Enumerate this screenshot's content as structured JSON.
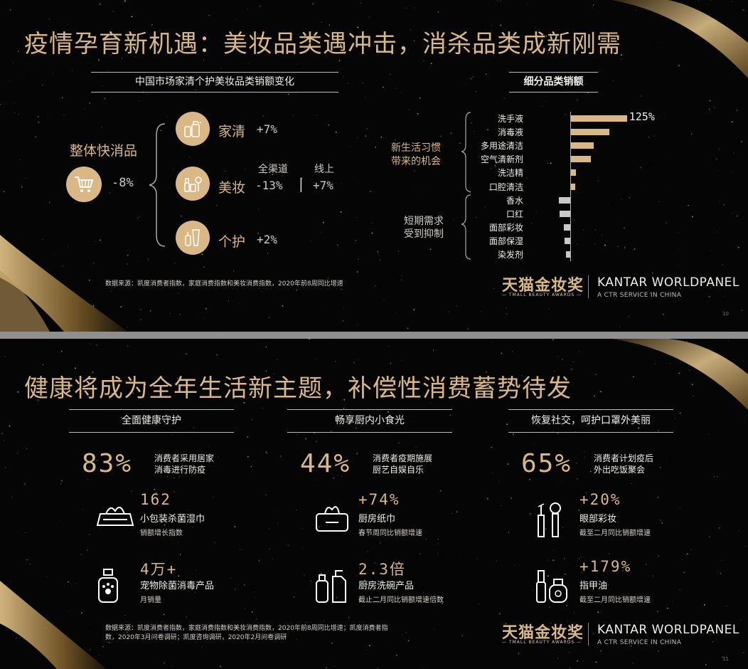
{
  "slide1": {
    "title": "疫情孕育新机遇：美妆品类遇冲击，消杀品类成新刚需",
    "left_header": "中国市场家清个护美妆品类销额变化",
    "overall": {
      "label": "整体快消品",
      "value": "-8%"
    },
    "categories": [
      {
        "label": "家清",
        "value": "+7%",
        "icon": "cleaning-bottles-icon"
      },
      {
        "label": "美妆",
        "value": "-13%",
        "value2": "+7%",
        "icon": "cosmetics-icon"
      },
      {
        "label": "个护",
        "value": "+2%",
        "icon": "personal-care-icon"
      }
    ],
    "channel_labels": {
      "all": "全渠道",
      "online": "线上"
    },
    "channel_divider": "|",
    "right_header": "细分品类销额",
    "group_labels": {
      "positive": [
        "新生活习惯",
        "带来的机会"
      ],
      "negative": [
        "短期需求",
        "受到抑制"
      ]
    },
    "chart_data": {
      "type": "bar",
      "categories": [
        "洗手液",
        "消毒液",
        "多用途清洁",
        "空气清新剂",
        "洗洁精",
        "口腔清洁",
        "香水",
        "口红",
        "面部彩妆",
        "面部保湿",
        "染发剂"
      ],
      "values": [
        125,
        85,
        50,
        44,
        11,
        9,
        -25,
        -24,
        -15,
        -12,
        -10
      ],
      "data_labels": [
        "125%",
        "",
        "",
        "",
        "",
        "",
        "",
        "",
        "",
        "",
        ""
      ],
      "colors": {
        "positive": "#d9b886",
        "negative": "#c8c8c8"
      }
    },
    "source": "数据来源：凯度消费者指数，家庭消费指数和美妆消费指数，2020年前8周同比增速",
    "page_number": "10"
  },
  "slide2": {
    "title": "健康将成为全年生活新主题，补偿性消费蓄势待发",
    "columns": [
      {
        "header": "全面健康守护",
        "stat": {
          "value": "83%",
          "desc": [
            "消费者采用居家",
            "消毒进行防疫"
          ]
        },
        "items": [
          {
            "icon": "wet-wipes-icon",
            "value": "162",
            "title": "小包装杀菌湿巾",
            "sub": "销额增长指数"
          },
          {
            "icon": "pet-spray-icon",
            "value": "4万+",
            "title": "宠物除菌消毒产品",
            "sub": "月销量"
          }
        ]
      },
      {
        "header": "畅享厨内小食光",
        "stat": {
          "value": "44%",
          "desc": [
            "消费者疫期施展",
            "厨艺自娱自乐"
          ]
        },
        "items": [
          {
            "icon": "tissue-box-icon",
            "value": "+74%",
            "title": "厨房纸巾",
            "sub": "春节周同比销额增速"
          },
          {
            "icon": "dish-soap-icon",
            "value": "2.3倍",
            "title": "厨房洗碗产品",
            "sub": "截止二月同比销额增速倍数"
          }
        ]
      },
      {
        "header": "恢复社交，呵护口罩外美丽",
        "stat": {
          "value": "65%",
          "desc": [
            "消费者计划疫后",
            "外出吃饭聚会"
          ]
        },
        "items": [
          {
            "icon": "eye-makeup-icon",
            "value": "+20%",
            "title": "眼部彩妆",
            "sub": "截至二月同比销额增速"
          },
          {
            "icon": "nail-polish-icon",
            "value": "+179%",
            "title": "指甲油",
            "sub": "截至二月同比销额增速"
          }
        ]
      }
    ],
    "source": [
      "数据来源：凯度消费者指数，家庭消费指数和美妆消费指数，2020年前8周同比增速；凯度消费者指",
      "数，2020年3月问卷调研；凯度咨询调研，2020年2月问卷调研"
    ],
    "page_number": "11"
  },
  "brand": {
    "tmall_cn": "天猫金妆奖",
    "tmall_en": "— TMALL BEAUTY AWARDS —",
    "kantar": "KANTAR WORLDPANEL",
    "kantar_sub": "A CTR SERVICE IN CHINA"
  },
  "colors": {
    "gold": "#d9b886",
    "background": "#050505",
    "separator": "#8f8f8f"
  }
}
